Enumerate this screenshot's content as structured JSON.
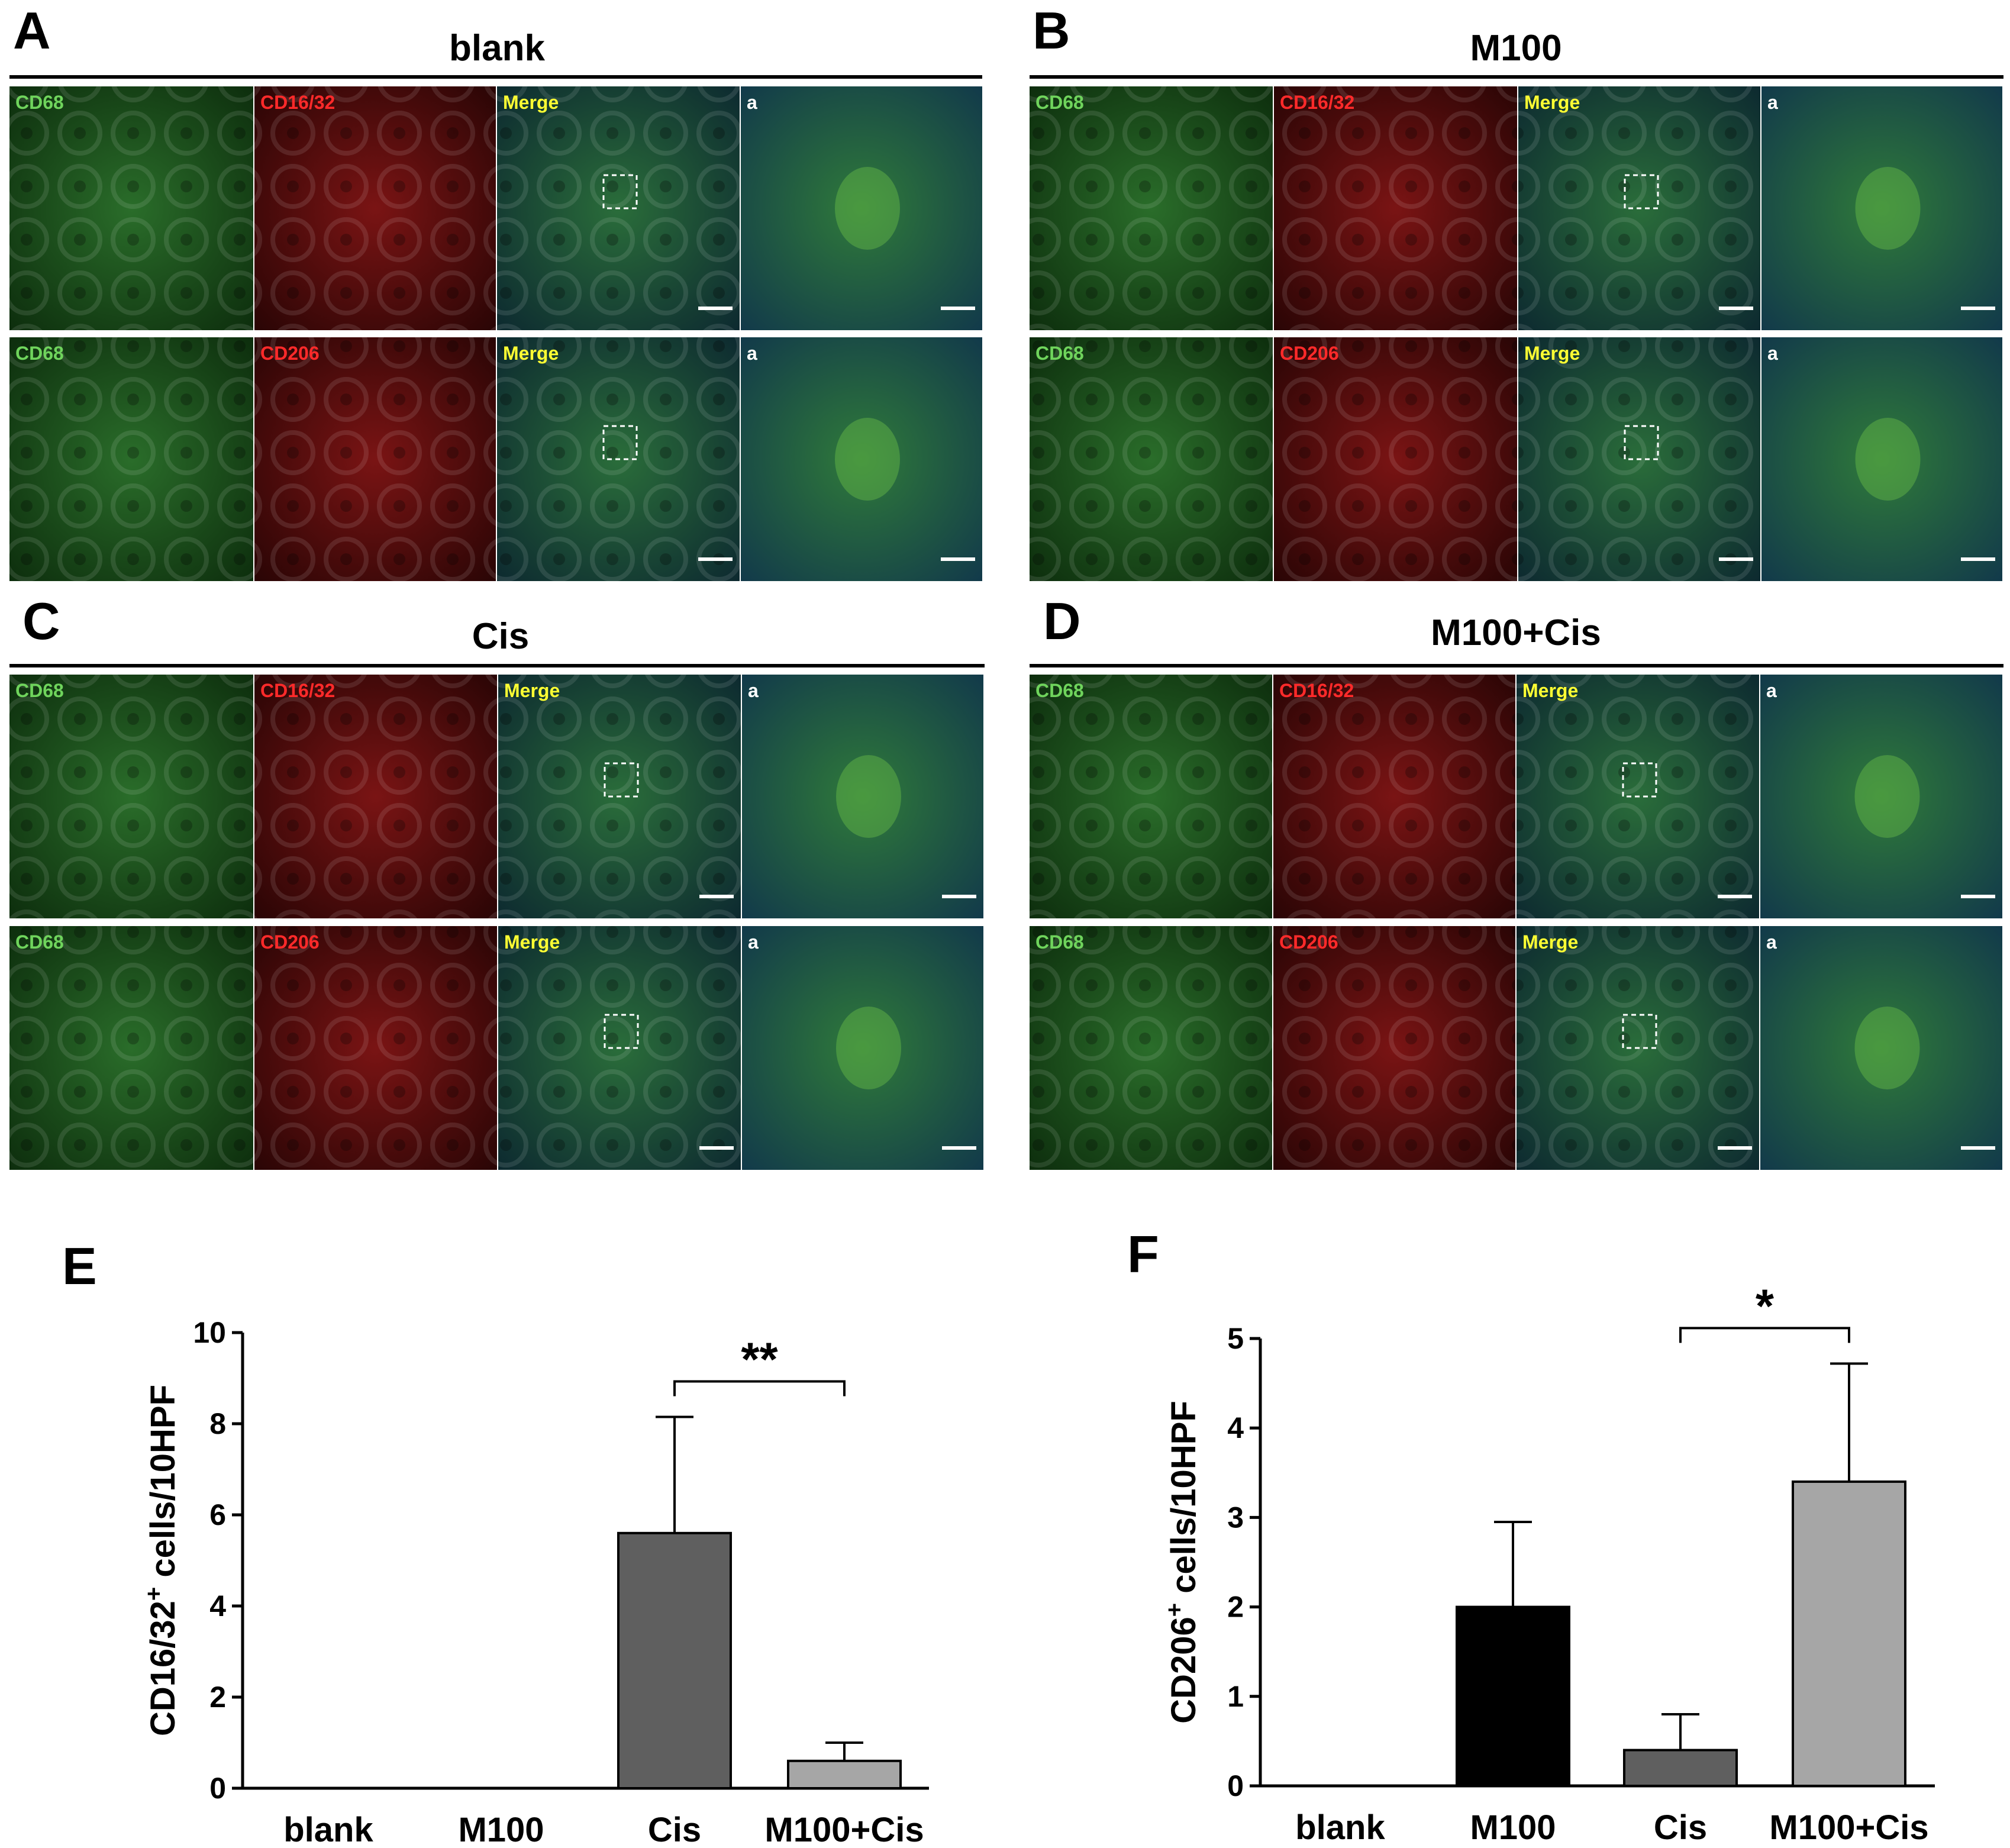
{
  "micrograph_panels": [
    {
      "letter": "A",
      "title": "blank",
      "rows": [
        {
          "labels": [
            "CD68",
            "CD16/32",
            "Merge",
            "a"
          ]
        },
        {
          "labels": [
            "CD68",
            "CD206",
            "Merge",
            "a"
          ]
        }
      ]
    },
    {
      "letter": "B",
      "title": "M100",
      "rows": [
        {
          "labels": [
            "CD68",
            "CD16/32",
            "Merge",
            "a"
          ]
        },
        {
          "labels": [
            "CD68",
            "CD206",
            "Merge",
            "a"
          ]
        }
      ]
    },
    {
      "letter": "C",
      "title": "Cis",
      "rows": [
        {
          "labels": [
            "CD68",
            "CD16/32",
            "Merge",
            "a"
          ]
        },
        {
          "labels": [
            "CD68",
            "CD206",
            "Merge",
            "a"
          ]
        }
      ]
    },
    {
      "letter": "D",
      "title": "M100+Cis",
      "rows": [
        {
          "labels": [
            "CD68",
            "CD16/32",
            "Merge",
            "a"
          ]
        },
        {
          "labels": [
            "CD68",
            "CD206",
            "Merge",
            "a"
          ]
        }
      ]
    }
  ],
  "colors": {
    "green_channel": "#1f5a1f",
    "red_channel": "#5a0f0f",
    "merge_tint": "#1a4a3a",
    "bar_black": "#000000",
    "bar_dark_gray": "#5f5f5f",
    "bar_light_gray": "#a6a6a6"
  },
  "chart_data": [
    {
      "letter": "E",
      "type": "bar",
      "categories": [
        "blank",
        "M100",
        "Cis",
        "M100+Cis"
      ],
      "values": [
        0,
        0,
        5.6,
        0.6
      ],
      "errors": [
        0,
        0,
        2.55,
        0.4
      ],
      "bar_colors": [
        "#000000",
        "#000000",
        "#5f5f5f",
        "#a6a6a6"
      ],
      "ylabel_main": "CD16/32",
      "ylabel_sup": "+",
      "ylabel_rest": " cells/10HPF",
      "ylim": [
        0,
        10
      ],
      "yticks": [
        "0",
        "2",
        "4",
        "6",
        "8",
        "10"
      ],
      "significance": {
        "between": [
          2,
          3
        ],
        "label": "**"
      }
    },
    {
      "letter": "F",
      "type": "bar",
      "categories": [
        "blank",
        "M100",
        "Cis",
        "M100+Cis"
      ],
      "values": [
        0,
        2.0,
        0.4,
        3.4
      ],
      "errors": [
        0,
        0.95,
        0.4,
        1.32
      ],
      "bar_colors": [
        "#000000",
        "#000000",
        "#5f5f5f",
        "#a6a6a6"
      ],
      "ylabel_main": "CD206",
      "ylabel_sup": "+",
      "ylabel_rest": " cells/10HPF",
      "ylim": [
        0,
        5
      ],
      "yticks": [
        "0",
        "1",
        "2",
        "3",
        "4",
        "5"
      ],
      "significance": {
        "between": [
          2,
          3
        ],
        "label": "*"
      }
    }
  ]
}
